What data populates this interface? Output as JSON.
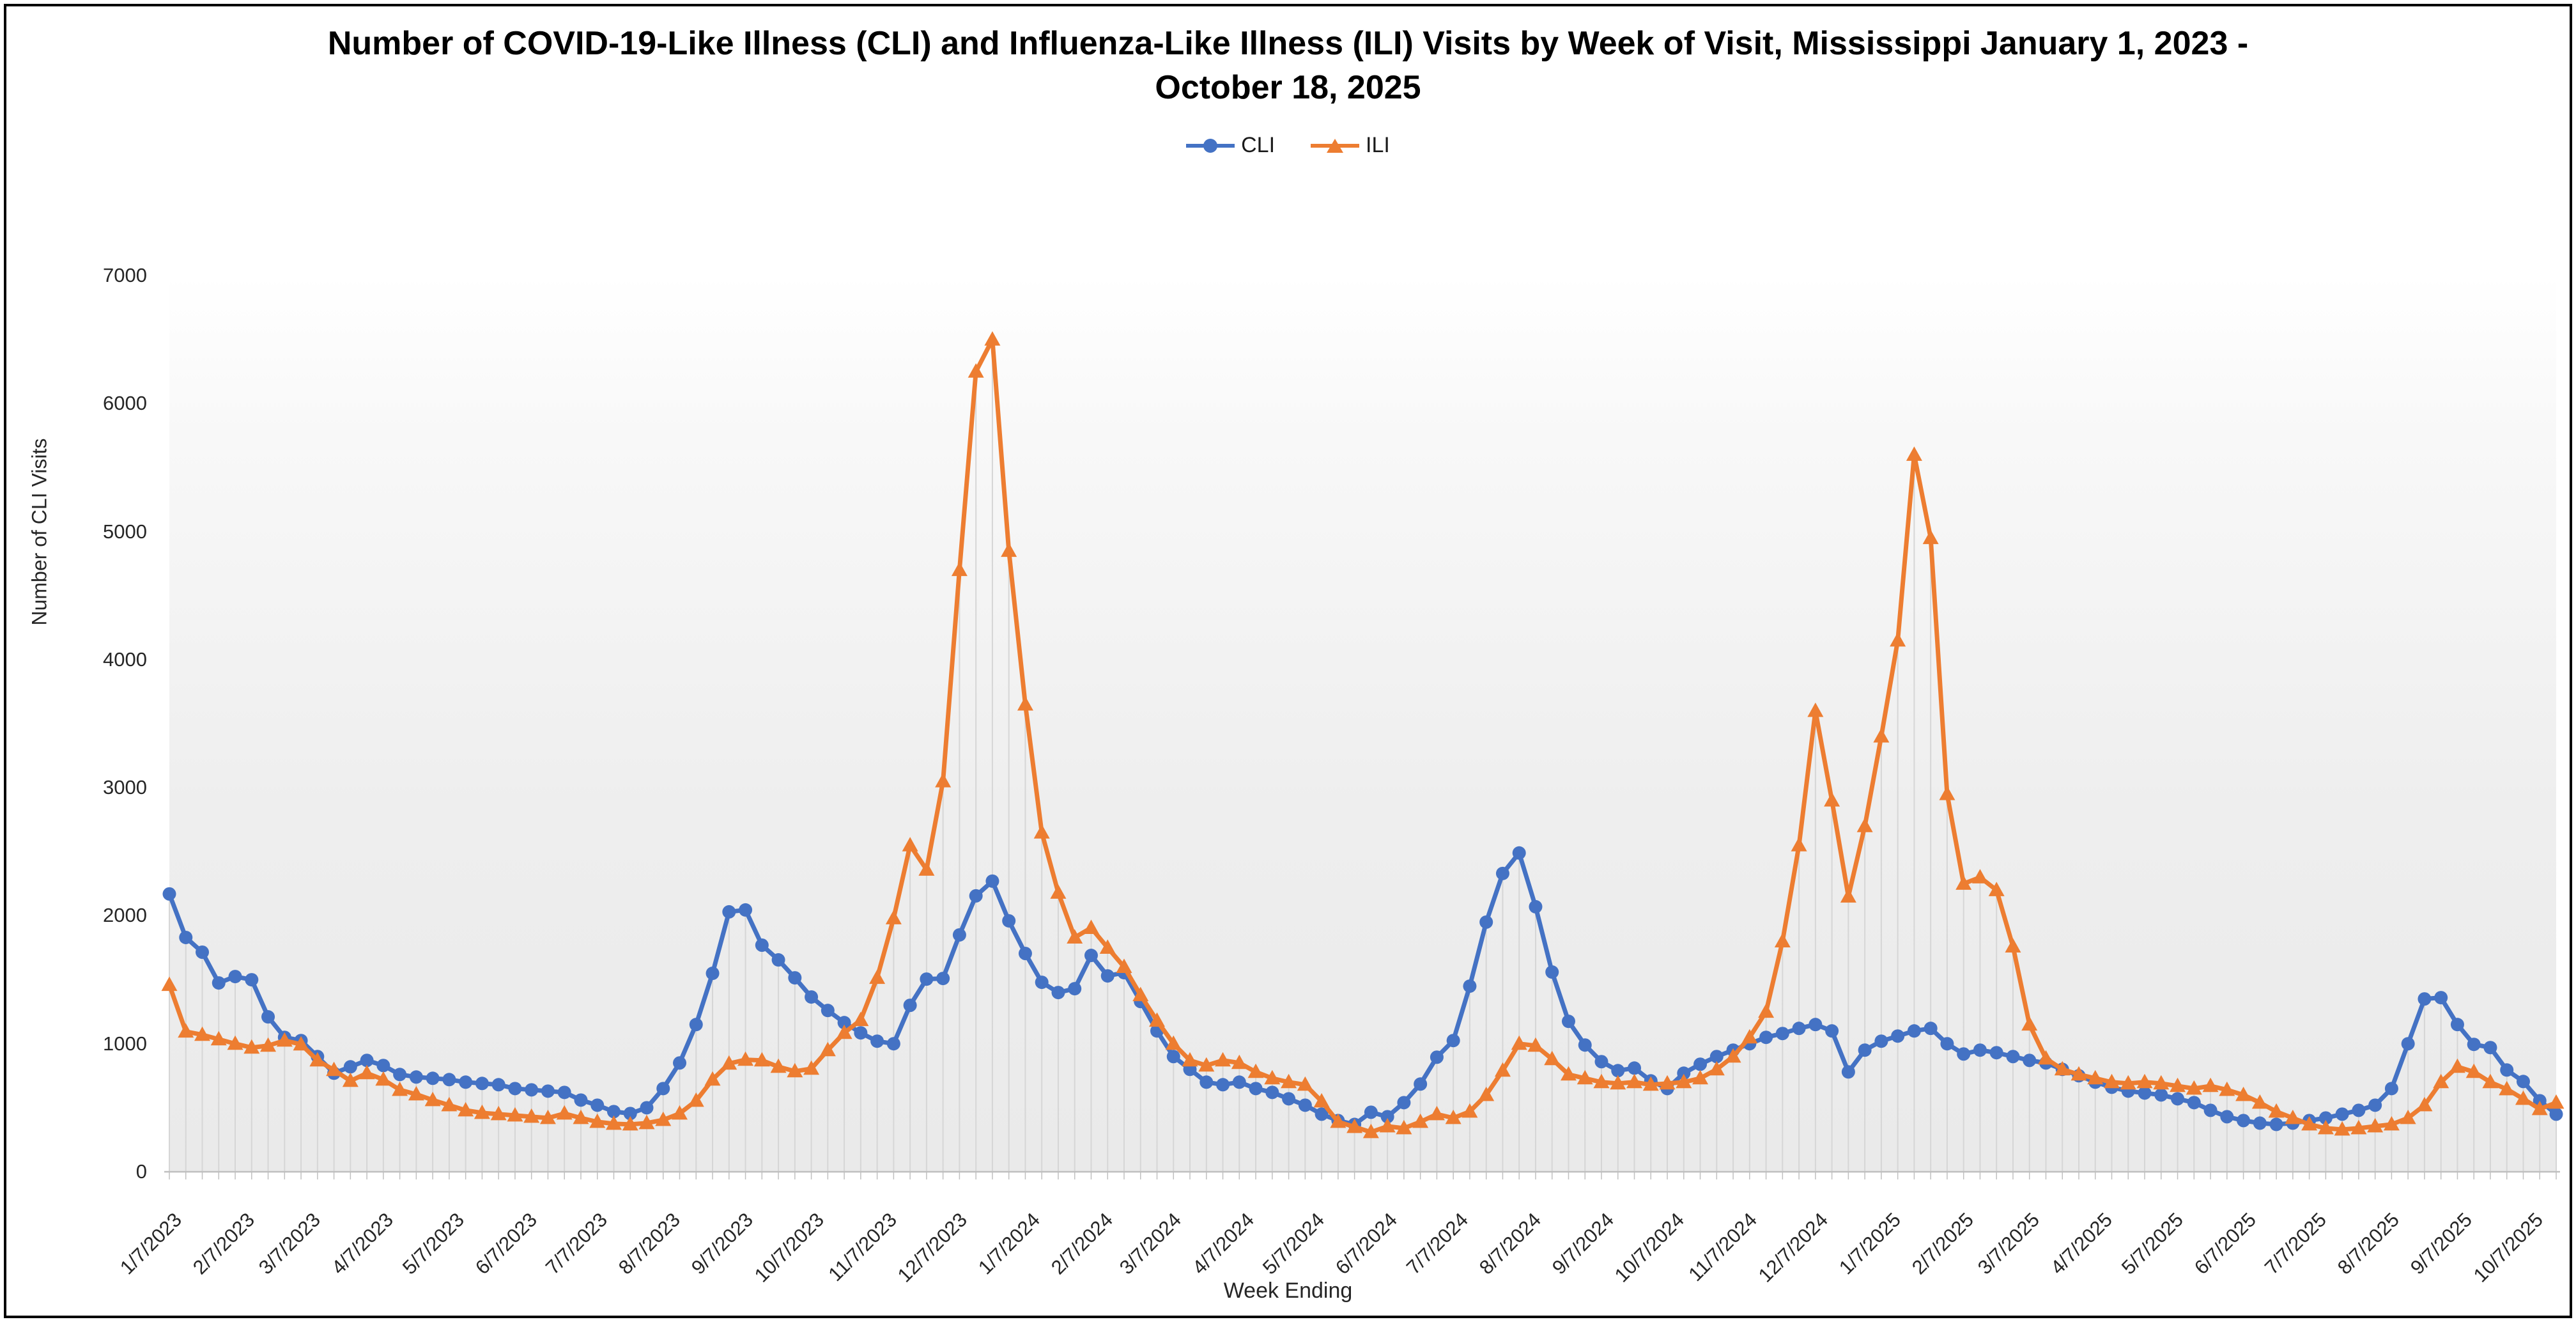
{
  "chart_data": {
    "type": "line",
    "title": "Number of COVID-19-Like Illness (CLI) and Influenza-Like Illness (ILI) Visits by Week of Visit, Mississippi January 1, 2023 - October 18, 2025",
    "xlabel": "Week Ending",
    "ylabel": "Number of CLI Visits",
    "ylim": [
      0,
      7000
    ],
    "y_ticks": [
      0,
      1000,
      2000,
      3000,
      4000,
      5000,
      6000,
      7000
    ],
    "weeks": 146,
    "first_week_ending": "1/7/2023",
    "grid": "weekly drop lines to x-axis, no horizontal gridlines",
    "legend_position": "top-center",
    "x_tick_labels": [
      "1/7/2023",
      "2/7/2023",
      "3/7/2023",
      "4/7/2023",
      "5/7/2023",
      "6/7/2023",
      "7/7/2023",
      "8/7/2023",
      "9/7/2023",
      "10/7/2023",
      "11/7/2023",
      "12/7/2023",
      "1/7/2024",
      "2/7/2024",
      "3/7/2024",
      "4/7/2024",
      "5/7/2024",
      "6/7/2024",
      "7/7/2024",
      "8/7/2024",
      "9/7/2024",
      "10/7/2024",
      "11/7/2024",
      "12/7/2024",
      "1/7/2025",
      "2/7/2025",
      "3/7/2025",
      "4/7/2025",
      "5/7/2025",
      "6/7/2025",
      "7/7/2025",
      "8/7/2025",
      "9/7/2025",
      "10/7/2025"
    ],
    "series": [
      {
        "name": "CLI",
        "color": "#4472C4",
        "marker": "circle",
        "values": [
          2170,
          1830,
          1715,
          1475,
          1525,
          1500,
          1210,
          1050,
          1025,
          900,
          770,
          820,
          870,
          830,
          760,
          740,
          730,
          720,
          700,
          690,
          680,
          650,
          640,
          630,
          620,
          560,
          520,
          470,
          455,
          500,
          650,
          850,
          1150,
          1550,
          2030,
          2045,
          1770,
          1655,
          1515,
          1365,
          1260,
          1165,
          1085,
          1020,
          1000,
          1300,
          1505,
          1510,
          1850,
          2155,
          2270,
          1960,
          1705,
          1480,
          1400,
          1430,
          1690,
          1530,
          1555,
          1330,
          1100,
          900,
          800,
          700,
          680,
          700,
          650,
          620,
          570,
          520,
          450,
          400,
          370,
          465,
          430,
          540,
          685,
          895,
          1025,
          1450,
          1950,
          2330,
          2490,
          2070,
          1560,
          1175,
          990,
          860,
          790,
          810,
          710,
          650,
          770,
          840,
          900,
          950,
          1000,
          1050,
          1080,
          1120,
          1150,
          1100,
          780,
          950,
          1020,
          1060,
          1100,
          1120,
          1000,
          920,
          950,
          930,
          900,
          870,
          850,
          800,
          750,
          700,
          660,
          630,
          615,
          600,
          570,
          540,
          480,
          430,
          400,
          380,
          370,
          380,
          400,
          420,
          450,
          480,
          520,
          650,
          1000,
          1350,
          1360,
          1150,
          995,
          970,
          795,
          705,
          555,
          450
        ]
      },
      {
        "name": "ILI",
        "color": "#ED7D31",
        "marker": "triangle",
        "values": [
          1460,
          1095,
          1070,
          1035,
          1000,
          970,
          985,
          1025,
          995,
          870,
          795,
          710,
          770,
          720,
          640,
          605,
          560,
          520,
          480,
          460,
          450,
          440,
          430,
          420,
          455,
          420,
          390,
          375,
          370,
          380,
          405,
          455,
          555,
          720,
          845,
          875,
          870,
          820,
          785,
          805,
          950,
          1085,
          1185,
          1515,
          1980,
          2550,
          2360,
          3050,
          4700,
          6250,
          6500,
          4850,
          3650,
          2650,
          2180,
          1830,
          1905,
          1750,
          1600,
          1380,
          1180,
          1000,
          870,
          830,
          870,
          850,
          780,
          730,
          700,
          680,
          550,
          390,
          350,
          310,
          355,
          340,
          390,
          450,
          420,
          470,
          600,
          790,
          1000,
          985,
          880,
          760,
          730,
          700,
          690,
          700,
          680,
          690,
          700,
          730,
          800,
          900,
          1050,
          1250,
          1800,
          2550,
          3600,
          2900,
          2150,
          2700,
          3400,
          4150,
          5600,
          4950,
          2950,
          2250,
          2300,
          2200,
          1760,
          1150,
          885,
          800,
          760,
          730,
          700,
          690,
          700,
          690,
          670,
          650,
          670,
          640,
          600,
          540,
          470,
          420,
          370,
          340,
          330,
          340,
          355,
          370,
          420,
          520,
          700,
          820,
          780,
          700,
          645,
          570,
          490,
          540
        ]
      }
    ]
  }
}
